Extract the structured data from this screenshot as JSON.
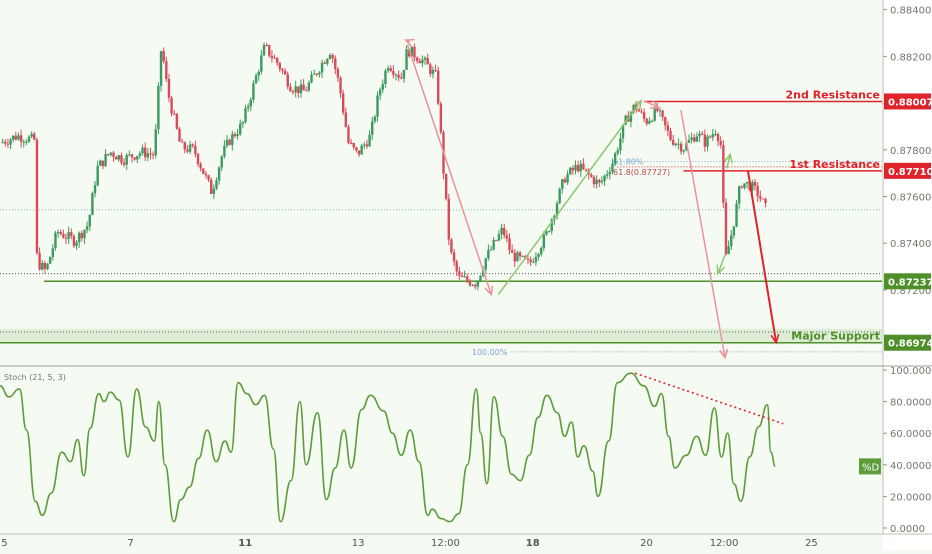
{
  "chart_data": {
    "type": "candlestick",
    "colors": {
      "background": "#f5fbf2",
      "up_candle": "#3d9a5e",
      "down_candle": "#d84a5a",
      "resistance": "#e0222b",
      "support": "#4f8f2a",
      "stoch_line": "#5d9c3b",
      "arrow_pink": "#e8949a",
      "arrow_green": "#8cc66e",
      "forecast_arrow": "#e0222b"
    },
    "price_axis": {
      "min": 0.869,
      "max": 0.8842,
      "ticks": [
        "0.88400",
        "0.88200",
        "0.88000",
        "0.87800",
        "0.87600",
        "0.87400",
        "0.87200"
      ]
    },
    "x_axis": {
      "ticks": [
        {
          "label": "5",
          "bold": false,
          "pos": 0.005
        },
        {
          "label": "7",
          "bold": false,
          "pos": 0.148
        },
        {
          "label": "11",
          "bold": true,
          "pos": 0.278
        },
        {
          "label": "13",
          "bold": false,
          "pos": 0.406
        },
        {
          "label": "12:00",
          "bold": false,
          "pos": 0.505
        },
        {
          "label": "18",
          "bold": true,
          "pos": 0.604
        },
        {
          "label": "20",
          "bold": false,
          "pos": 0.733
        },
        {
          "label": "12:00",
          "bold": false,
          "pos": 0.821
        },
        {
          "label": "25",
          "bold": false,
          "pos": 0.92
        }
      ]
    },
    "levels": [
      {
        "name": "2nd Resistance",
        "value": 0.88007,
        "label": "0.88007",
        "color": "#e0222b",
        "start": 0.73
      },
      {
        "name": "1st Resistance",
        "value": 0.8771,
        "label": "0.87710",
        "color": "#e0222b",
        "start": 0.775
      },
      {
        "name": "",
        "value": 0.87237,
        "label": "0.87237",
        "color": "#4f8f2a",
        "start": 0.05
      },
      {
        "name": "Major Support",
        "value": 0.86974,
        "label": "0.86974",
        "color": "#4f8f2a",
        "start": 0.0
      }
    ],
    "fib_labels": {
      "p1": "61.80%",
      "p2": "61.8(0.87727)",
      "p3": "100.00%"
    },
    "price_anchors": [
      [
        0.0,
        0.8783
      ],
      [
        0.02,
        0.8786
      ],
      [
        0.04,
        0.8784
      ],
      [
        0.042,
        0.8732
      ],
      [
        0.052,
        0.8728
      ],
      [
        0.065,
        0.8745
      ],
      [
        0.085,
        0.8741
      ],
      [
        0.1,
        0.8748
      ],
      [
        0.11,
        0.8772
      ],
      [
        0.125,
        0.8779
      ],
      [
        0.14,
        0.8776
      ],
      [
        0.16,
        0.8779
      ],
      [
        0.175,
        0.8778
      ],
      [
        0.183,
        0.8825
      ],
      [
        0.19,
        0.8805
      ],
      [
        0.205,
        0.8781
      ],
      [
        0.22,
        0.878
      ],
      [
        0.24,
        0.8762
      ],
      [
        0.252,
        0.8778
      ],
      [
        0.26,
        0.8784
      ],
      [
        0.275,
        0.8791
      ],
      [
        0.3,
        0.8824
      ],
      [
        0.315,
        0.8817
      ],
      [
        0.33,
        0.8807
      ],
      [
        0.345,
        0.8805
      ],
      [
        0.36,
        0.8814
      ],
      [
        0.375,
        0.8823
      ],
      [
        0.385,
        0.8807
      ],
      [
        0.395,
        0.8783
      ],
      [
        0.405,
        0.8778
      ],
      [
        0.42,
        0.8786
      ],
      [
        0.43,
        0.8805
      ],
      [
        0.44,
        0.8817
      ],
      [
        0.455,
        0.8811
      ],
      [
        0.462,
        0.8823
      ],
      [
        0.48,
        0.8818
      ],
      [
        0.495,
        0.8811
      ],
      [
        0.502,
        0.8775
      ],
      [
        0.51,
        0.8737
      ],
      [
        0.52,
        0.8725
      ],
      [
        0.54,
        0.8723
      ],
      [
        0.55,
        0.8733
      ],
      [
        0.57,
        0.8746
      ],
      [
        0.58,
        0.8735
      ],
      [
        0.6,
        0.8731
      ],
      [
        0.62,
        0.8744
      ],
      [
        0.64,
        0.8768
      ],
      [
        0.655,
        0.8773
      ],
      [
        0.68,
        0.8765
      ],
      [
        0.695,
        0.8775
      ],
      [
        0.71,
        0.8793
      ],
      [
        0.72,
        0.8799
      ],
      [
        0.732,
        0.8792
      ],
      [
        0.745,
        0.8797
      ],
      [
        0.76,
        0.8785
      ],
      [
        0.775,
        0.8781
      ],
      [
        0.79,
        0.8787
      ],
      [
        0.8,
        0.8783
      ],
      [
        0.812,
        0.8789
      ],
      [
        0.818,
        0.8781
      ],
      [
        0.822,
        0.8732
      ],
      [
        0.83,
        0.8745
      ],
      [
        0.84,
        0.8766
      ],
      [
        0.85,
        0.8765
      ],
      [
        0.86,
        0.8761
      ],
      [
        0.868,
        0.8755
      ]
    ],
    "stochastic": {
      "label": "Stoch (21, 5, 3)",
      "series_label": "%D",
      "ylim": [
        0,
        100
      ],
      "ticks": [
        "100.0000",
        "80.0000",
        "60.0000",
        "40.0000",
        "20.0000",
        "0.0000"
      ],
      "anchors": [
        [
          0.0,
          90
        ],
        [
          0.01,
          83
        ],
        [
          0.022,
          88
        ],
        [
          0.03,
          62
        ],
        [
          0.04,
          17
        ],
        [
          0.048,
          8
        ],
        [
          0.058,
          22
        ],
        [
          0.07,
          48
        ],
        [
          0.08,
          42
        ],
        [
          0.088,
          56
        ],
        [
          0.095,
          33
        ],
        [
          0.102,
          63
        ],
        [
          0.112,
          85
        ],
        [
          0.118,
          80
        ],
        [
          0.125,
          86
        ],
        [
          0.135,
          81
        ],
        [
          0.145,
          45
        ],
        [
          0.155,
          88
        ],
        [
          0.165,
          64
        ],
        [
          0.175,
          55
        ],
        [
          0.18,
          80
        ],
        [
          0.187,
          40
        ],
        [
          0.197,
          4
        ],
        [
          0.205,
          18
        ],
        [
          0.215,
          26
        ],
        [
          0.225,
          44
        ],
        [
          0.235,
          62
        ],
        [
          0.245,
          42
        ],
        [
          0.255,
          55
        ],
        [
          0.262,
          48
        ],
        [
          0.27,
          92
        ],
        [
          0.28,
          85
        ],
        [
          0.29,
          78
        ],
        [
          0.3,
          84
        ],
        [
          0.31,
          50
        ],
        [
          0.318,
          4
        ],
        [
          0.33,
          30
        ],
        [
          0.34,
          80
        ],
        [
          0.347,
          40
        ],
        [
          0.36,
          73
        ],
        [
          0.37,
          18
        ],
        [
          0.38,
          38
        ],
        [
          0.39,
          62
        ],
        [
          0.398,
          38
        ],
        [
          0.41,
          75
        ],
        [
          0.42,
          84
        ],
        [
          0.435,
          74
        ],
        [
          0.445,
          60
        ],
        [
          0.455,
          46
        ],
        [
          0.465,
          62
        ],
        [
          0.475,
          42
        ],
        [
          0.485,
          8
        ],
        [
          0.49,
          12
        ],
        [
          0.5,
          6
        ],
        [
          0.51,
          4
        ],
        [
          0.52,
          9
        ],
        [
          0.53,
          40
        ],
        [
          0.54,
          88
        ],
        [
          0.545,
          60
        ],
        [
          0.552,
          28
        ],
        [
          0.56,
          83
        ],
        [
          0.57,
          58
        ],
        [
          0.58,
          34
        ],
        [
          0.59,
          30
        ],
        [
          0.6,
          46
        ],
        [
          0.61,
          70
        ],
        [
          0.62,
          84
        ],
        [
          0.632,
          73
        ],
        [
          0.64,
          58
        ],
        [
          0.648,
          67
        ],
        [
          0.655,
          45
        ],
        [
          0.662,
          52
        ],
        [
          0.672,
          36
        ],
        [
          0.678,
          20
        ],
        [
          0.69,
          55
        ],
        [
          0.7,
          92
        ],
        [
          0.715,
          98
        ],
        [
          0.73,
          90
        ],
        [
          0.742,
          77
        ],
        [
          0.75,
          85
        ],
        [
          0.758,
          58
        ],
        [
          0.765,
          38
        ],
        [
          0.778,
          46
        ],
        [
          0.79,
          58
        ],
        [
          0.8,
          46
        ],
        [
          0.81,
          76
        ],
        [
          0.818,
          45
        ],
        [
          0.825,
          60
        ],
        [
          0.832,
          28
        ],
        [
          0.84,
          17
        ],
        [
          0.85,
          45
        ],
        [
          0.86,
          64
        ],
        [
          0.87,
          78
        ],
        [
          0.874,
          48
        ],
        [
          0.879,
          39
        ]
      ]
    }
  }
}
